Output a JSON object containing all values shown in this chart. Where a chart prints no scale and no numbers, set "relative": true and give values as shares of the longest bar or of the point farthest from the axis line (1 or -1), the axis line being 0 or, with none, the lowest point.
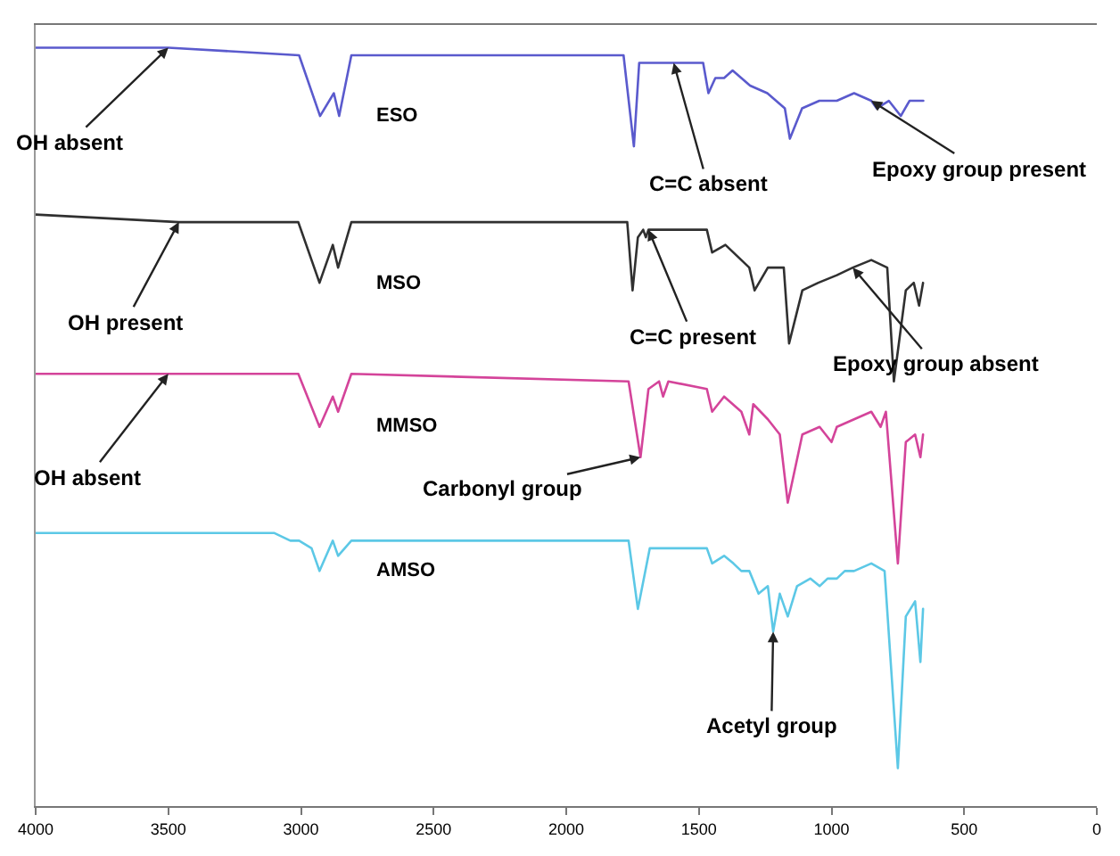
{
  "chart_data": {
    "type": "line",
    "relative": true,
    "legend": false,
    "marker": "none",
    "line_style": "solid",
    "xlim": [
      4000,
      0
    ],
    "xticks": [
      4000,
      3500,
      3000,
      2500,
      2000,
      1500,
      1000,
      500,
      0
    ],
    "series": [
      {
        "name": "ESO",
        "color": "#5a5acd",
        "x": [
          4000,
          3500,
          3007,
          2928,
          2876,
          2856,
          2810,
          2400,
          1784,
          1745,
          1725,
          1484,
          1464,
          1438,
          1405,
          1373,
          1307,
          1242,
          1176,
          1157,
          1111,
          1046,
          980,
          915,
          850,
          830,
          784,
          739,
          706,
          654
        ],
        "values": [
          1.0,
          1.0,
          0.99,
          0.91,
          0.94,
          0.91,
          0.99,
          0.99,
          0.99,
          0.87,
          0.98,
          0.98,
          0.94,
          0.96,
          0.96,
          0.97,
          0.95,
          0.94,
          0.92,
          0.88,
          0.92,
          0.93,
          0.93,
          0.94,
          0.93,
          0.92,
          0.93,
          0.91,
          0.93,
          0.93
        ]
      },
      {
        "name": "MSO",
        "color": "#303030",
        "x": [
          4000,
          3460,
          3010,
          2930,
          2880,
          2860,
          2810,
          1770,
          1750,
          1730,
          1710,
          1700,
          1690,
          1470,
          1450,
          1400,
          1340,
          1310,
          1290,
          1240,
          1180,
          1160,
          1110,
          1050,
          980,
          920,
          850,
          790,
          765,
          720,
          690,
          670,
          655
        ],
        "values": [
          0.78,
          0.77,
          0.77,
          0.69,
          0.74,
          0.71,
          0.77,
          0.77,
          0.68,
          0.75,
          0.76,
          0.75,
          0.76,
          0.76,
          0.73,
          0.74,
          0.72,
          0.71,
          0.68,
          0.71,
          0.71,
          0.61,
          0.68,
          0.69,
          0.7,
          0.71,
          0.72,
          0.71,
          0.56,
          0.68,
          0.69,
          0.66,
          0.69
        ]
      },
      {
        "name": "MMSO",
        "color": "#d4449a",
        "x": [
          4000,
          3500,
          3010,
          2930,
          2880,
          2860,
          2810,
          1765,
          1720,
          1690,
          1650,
          1635,
          1615,
          1470,
          1450,
          1405,
          1340,
          1310,
          1295,
          1240,
          1195,
          1165,
          1110,
          1045,
          1000,
          980,
          915,
          850,
          815,
          795,
          750,
          720,
          685,
          665,
          655
        ],
        "values": [
          0.57,
          0.57,
          0.57,
          0.5,
          0.54,
          0.52,
          0.57,
          0.56,
          0.46,
          0.55,
          0.56,
          0.54,
          0.56,
          0.55,
          0.52,
          0.54,
          0.52,
          0.49,
          0.53,
          0.51,
          0.49,
          0.4,
          0.49,
          0.5,
          0.48,
          0.5,
          0.51,
          0.52,
          0.5,
          0.52,
          0.32,
          0.48,
          0.49,
          0.46,
          0.49
        ]
      },
      {
        "name": "AMSO",
        "color": "#5cc8e6",
        "x": [
          4000,
          3100,
          3040,
          3007,
          2960,
          2930,
          2880,
          2860,
          2810,
          1765,
          1730,
          1685,
          1470,
          1450,
          1405,
          1370,
          1340,
          1310,
          1275,
          1240,
          1220,
          1195,
          1165,
          1130,
          1080,
          1045,
          1015,
          980,
          950,
          915,
          850,
          800,
          750,
          720,
          685,
          665,
          655
        ],
        "values": [
          0.36,
          0.36,
          0.35,
          0.35,
          0.34,
          0.31,
          0.35,
          0.33,
          0.35,
          0.35,
          0.26,
          0.34,
          0.34,
          0.32,
          0.33,
          0.32,
          0.31,
          0.31,
          0.28,
          0.29,
          0.23,
          0.28,
          0.25,
          0.29,
          0.3,
          0.29,
          0.3,
          0.3,
          0.31,
          0.31,
          0.32,
          0.31,
          0.05,
          0.25,
          0.27,
          0.19,
          0.26
        ]
      }
    ],
    "annotations": [
      {
        "text": "OH absent",
        "x": 3500,
        "y": 1.0
      },
      {
        "text": "C=C absent",
        "x": 1595,
        "y": 0.98
      },
      {
        "text": "Epoxy group present",
        "x": 850,
        "y": 0.93
      },
      {
        "text": "OH present",
        "x": 3460,
        "y": 0.77
      },
      {
        "text": "C=C present",
        "x": 1690,
        "y": 0.76
      },
      {
        "text": "Epoxy group absent",
        "x": 920,
        "y": 0.71
      },
      {
        "text": "OH absent",
        "x": 3500,
        "y": 0.57
      },
      {
        "text": "Carbonyl group",
        "x": 1720,
        "y": 0.46
      },
      {
        "text": "Acetyl group",
        "x": 1220,
        "y": 0.23
      }
    ]
  }
}
